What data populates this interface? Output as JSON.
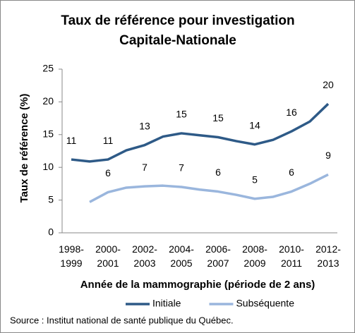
{
  "chart_data": {
    "type": "line",
    "title": "Taux de référence pour investigation",
    "subtitle": "Capitale-Nationale",
    "y_label": "Taux de référence (%)",
    "x_label": "Année de la mammographie (période de 2 ans)",
    "source": "Source : Institut national de santé publique du Québec.",
    "categories": [
      "1998-1999",
      null,
      "2000-2001",
      null,
      "2002-2003",
      null,
      "2004-2005",
      null,
      "2006-2007",
      null,
      "2008-2009",
      null,
      "2010-2011",
      null,
      "2012-2013"
    ],
    "series": [
      {
        "name": "Initiale",
        "color": "#2e5a87",
        "values": [
          11.2,
          10.9,
          11.2,
          12.6,
          13.4,
          14.7,
          15.2,
          14.9,
          14.6,
          14.0,
          13.5,
          14.2,
          15.5,
          17.0,
          19.7
        ],
        "value_labels": [
          "11",
          null,
          "11",
          null,
          "13",
          null,
          "15",
          null,
          "15",
          null,
          "14",
          null,
          "16",
          null,
          "20"
        ]
      },
      {
        "name": "Subséquente",
        "color": "#9ab6dd",
        "values": [
          null,
          4.7,
          6.2,
          6.9,
          7.1,
          7.2,
          7.0,
          6.6,
          6.3,
          5.8,
          5.2,
          5.5,
          6.3,
          7.5,
          8.9
        ],
        "value_labels": [
          null,
          null,
          "6",
          null,
          "7",
          null,
          "7",
          null,
          "6",
          null,
          "5",
          null,
          "6",
          null,
          "9"
        ]
      }
    ],
    "ylim": [
      0,
      25
    ],
    "yticks": [
      0,
      5,
      10,
      15,
      20,
      25
    ],
    "legend": "bottom"
  }
}
